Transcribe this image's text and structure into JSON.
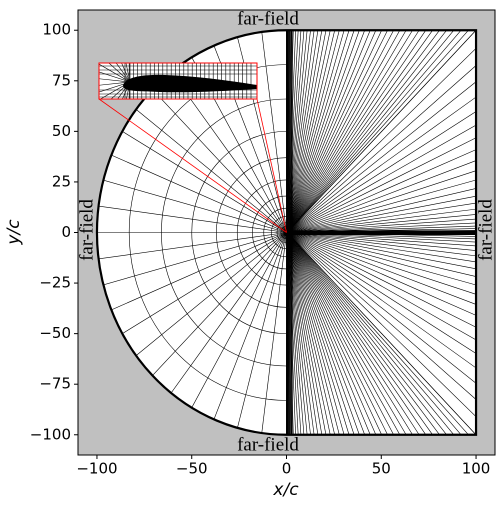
{
  "chart_data": {
    "type": "mesh",
    "xlabel": "x/c",
    "ylabel": "y/c",
    "annotations": [
      "far-field",
      "far-field",
      "far-field",
      "far-field"
    ],
    "xlim": [
      -110,
      110
    ],
    "ylim": [
      -110,
      110
    ],
    "xticks": [
      {
        "value": -100,
        "label": "−100"
      },
      {
        "value": -50,
        "label": "−50"
      },
      0,
      50,
      100
    ],
    "yticks": [
      {
        "value": -100,
        "label": "−100"
      },
      {
        "value": -75,
        "label": "−75"
      },
      {
        "value": -50,
        "label": "−50"
      },
      {
        "value": -25,
        "label": "−25"
      },
      0,
      25,
      50,
      75,
      100
    ],
    "background": "#c0c0c0",
    "inset_color": "#ff0000"
  }
}
